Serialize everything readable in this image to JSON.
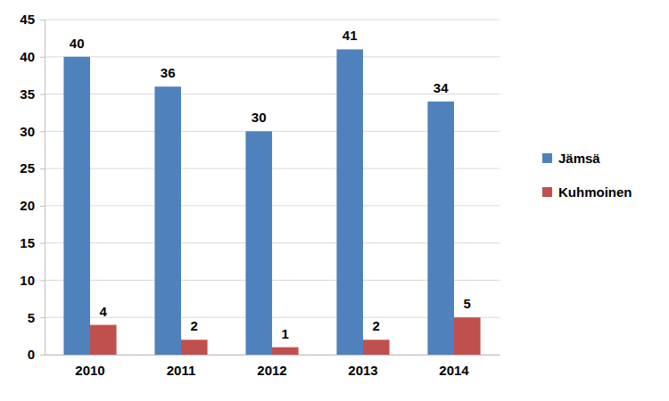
{
  "chart_data": {
    "type": "bar",
    "categories": [
      "2010",
      "2011",
      "2012",
      "2013",
      "2014"
    ],
    "series": [
      {
        "name": "Jämsä",
        "color": "#4F81BD",
        "values": [
          40,
          36,
          30,
          41,
          34
        ]
      },
      {
        "name": "Kuhmoinen",
        "color": "#C0504D",
        "values": [
          4,
          2,
          1,
          2,
          5
        ]
      }
    ],
    "ylim": [
      0,
      45
    ],
    "yticks": [
      0,
      5,
      10,
      15,
      20,
      25,
      30,
      35,
      40,
      45
    ],
    "grid": true,
    "legend": "right",
    "data_labels": true
  }
}
